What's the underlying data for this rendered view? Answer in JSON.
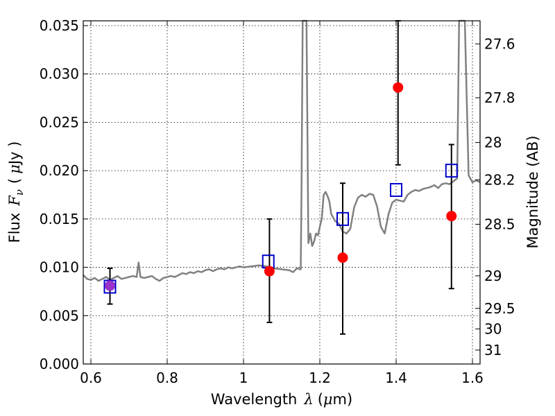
{
  "chart_data": {
    "type": "scatter",
    "title": "",
    "xlabel": "Wavelength",
    "xlabel_symbol": "λ",
    "xlabel_unit_open": "(",
    "xlabel_unit_mu": "μ",
    "xlabel_unit_rest": "m)",
    "ylabel": "Flux",
    "ylabel_symbol": "F",
    "ylabel_sub": "ν",
    "ylabel_unit_open": "(",
    "ylabel_unit_mu": "μ",
    "ylabel_unit_rest": "Jy )",
    "y2label": "Magnitude (AB)",
    "xlim": [
      0.58,
      1.62
    ],
    "ylim": [
      0.0,
      0.0355
    ],
    "grid": true,
    "x_ticks": [
      0.6,
      0.8,
      1.0,
      1.2,
      1.4,
      1.6
    ],
    "x_tick_labels": [
      "0.6",
      "0.8",
      "1",
      "1.2",
      "1.4",
      "1.6"
    ],
    "y_ticks": [
      0.0,
      0.005,
      0.01,
      0.015,
      0.02,
      0.025,
      0.03,
      0.035
    ],
    "y_tick_labels": [
      "0.000",
      "0.005",
      "0.010",
      "0.015",
      "0.020",
      "0.025",
      "0.030",
      "0.035"
    ],
    "y2_ticks": [
      27.6,
      27.8,
      28,
      28.2,
      28.5,
      29,
      29.5,
      30,
      31
    ],
    "y2_tick_labels": [
      "27.6",
      "27.8",
      "28",
      "28.2",
      "28.5",
      "29",
      "29.5",
      "30",
      "31"
    ],
    "y2_mag_zero_point": 23.9,
    "spectrum": {
      "color": "#808080",
      "x": [
        0.58,
        0.59,
        0.6,
        0.61,
        0.62,
        0.63,
        0.64,
        0.65,
        0.66,
        0.67,
        0.68,
        0.69,
        0.7,
        0.71,
        0.72,
        0.725,
        0.73,
        0.74,
        0.75,
        0.76,
        0.77,
        0.78,
        0.79,
        0.8,
        0.81,
        0.82,
        0.83,
        0.84,
        0.85,
        0.86,
        0.87,
        0.88,
        0.89,
        0.9,
        0.91,
        0.92,
        0.93,
        0.94,
        0.95,
        0.96,
        0.97,
        0.98,
        0.99,
        1.0,
        1.02,
        1.04,
        1.06,
        1.08,
        1.1,
        1.12,
        1.13,
        1.14,
        1.15,
        1.152,
        1.155,
        1.158,
        1.16,
        1.165,
        1.17,
        1.175,
        1.18,
        1.185,
        1.19,
        1.195,
        1.2,
        1.205,
        1.21,
        1.215,
        1.22,
        1.225,
        1.23,
        1.24,
        1.25,
        1.26,
        1.27,
        1.28,
        1.29,
        1.3,
        1.31,
        1.32,
        1.33,
        1.34,
        1.35,
        1.36,
        1.37,
        1.38,
        1.39,
        1.4,
        1.41,
        1.42,
        1.43,
        1.44,
        1.45,
        1.46,
        1.47,
        1.48,
        1.49,
        1.5,
        1.51,
        1.52,
        1.53,
        1.54,
        1.55,
        1.56,
        1.565,
        1.57,
        1.575,
        1.58,
        1.59,
        1.6,
        1.61,
        1.62
      ],
      "y": [
        0.0092,
        0.0088,
        0.0087,
        0.0089,
        0.0086,
        0.0088,
        0.009,
        0.0087,
        0.0089,
        0.0091,
        0.0088,
        0.0089,
        0.009,
        0.0091,
        0.009,
        0.0105,
        0.009,
        0.0089,
        0.009,
        0.0091,
        0.0088,
        0.0086,
        0.0089,
        0.009,
        0.0091,
        0.009,
        0.0092,
        0.0094,
        0.0093,
        0.0095,
        0.0094,
        0.0096,
        0.0095,
        0.0097,
        0.0098,
        0.0096,
        0.0098,
        0.0099,
        0.0098,
        0.01,
        0.0099,
        0.01,
        0.0101,
        0.01,
        0.0101,
        0.0102,
        0.0101,
        0.0099,
        0.0098,
        0.0097,
        0.0095,
        0.0099,
        0.0098,
        0.018,
        0.0355,
        0.0355,
        0.0355,
        0.0355,
        0.0125,
        0.0135,
        0.0122,
        0.0127,
        0.0135,
        0.0133,
        0.0142,
        0.015,
        0.0175,
        0.0178,
        0.0174,
        0.0168,
        0.0155,
        0.0148,
        0.0145,
        0.0137,
        0.0135,
        0.014,
        0.0162,
        0.0172,
        0.0175,
        0.0173,
        0.0176,
        0.0175,
        0.0163,
        0.0142,
        0.0135,
        0.0155,
        0.0167,
        0.017,
        0.0169,
        0.0168,
        0.0175,
        0.0178,
        0.018,
        0.0179,
        0.0181,
        0.0182,
        0.0183,
        0.0185,
        0.0182,
        0.0186,
        0.0187,
        0.0186,
        0.0189,
        0.0192,
        0.0355,
        0.0355,
        0.0355,
        0.0355,
        0.0195,
        0.0188,
        0.019,
        0.0188
      ]
    },
    "series": [
      {
        "name": "",
        "marker": "circle",
        "color": "#ff0000",
        "x": [
          0.65,
          1.068,
          1.26,
          1.405,
          1.545
        ],
        "y": [
          0.0081,
          0.0096,
          0.011,
          0.0286,
          0.0153
        ],
        "yerr_low": [
          0.0062,
          0.0043,
          0.0031,
          0.0206,
          0.0078
        ],
        "yerr_high": [
          0.0099,
          0.015,
          0.0187,
          0.0355,
          0.0227
        ]
      },
      {
        "name": "",
        "marker": "square",
        "color": "#0000cc",
        "x": [
          0.65,
          1.065,
          1.26,
          1.4,
          1.545
        ],
        "y": [
          0.008,
          0.0106,
          0.015,
          0.018,
          0.02
        ]
      }
    ]
  }
}
